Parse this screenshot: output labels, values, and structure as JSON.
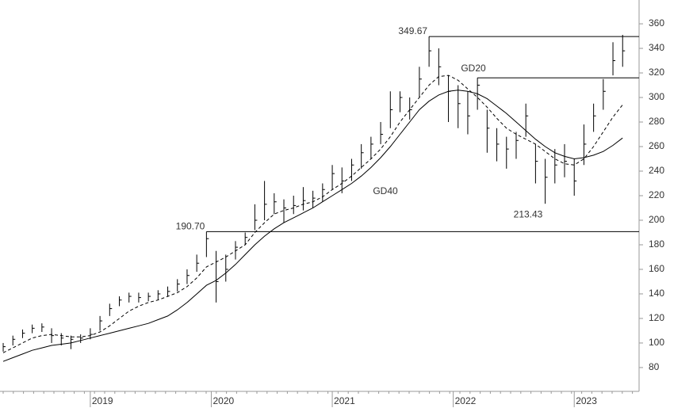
{
  "chart_data": {
    "type": "ohlc",
    "color": "#000000",
    "xlim": [
      -0.33,
      65.7
    ],
    "xticks": [
      {
        "value": 9,
        "label": "2019"
      },
      {
        "value": 21.5,
        "label": "2020"
      },
      {
        "value": 34,
        "label": "2021"
      },
      {
        "value": 46.5,
        "label": "2022"
      },
      {
        "value": 59,
        "label": "2023"
      }
    ],
    "ylim": [
      60.6,
      379.4
    ],
    "yticks": [
      80,
      100,
      120,
      140,
      160,
      180,
      200,
      220,
      240,
      260,
      280,
      300,
      320,
      340,
      360
    ],
    "high": [
      100,
      106,
      111,
      115,
      116,
      112,
      108,
      106,
      107,
      112,
      122,
      132,
      138,
      141,
      141,
      141,
      143,
      146,
      152,
      160,
      172,
      190.7,
      175,
      172,
      183,
      190,
      213,
      232,
      222,
      217,
      220,
      227,
      224,
      230,
      245,
      243,
      250,
      262,
      268,
      280,
      305,
      305,
      300,
      325,
      349.67,
      340,
      318,
      310,
      305,
      316,
      290,
      275,
      268,
      272,
      295,
      262,
      250,
      258,
      262,
      250,
      278,
      295,
      315,
      345,
      351
    ],
    "low": [
      93,
      98,
      104,
      108,
      109,
      100,
      98,
      95,
      100,
      103,
      110,
      122,
      130,
      133,
      133,
      134,
      135,
      138,
      142,
      148,
      158,
      170,
      133,
      150,
      168,
      180,
      192,
      200,
      205,
      198,
      205,
      208,
      210,
      215,
      225,
      222,
      232,
      242,
      250,
      262,
      275,
      288,
      282,
      300,
      325,
      310,
      280,
      275,
      270,
      290,
      255,
      248,
      242,
      250,
      268,
      230,
      213.43,
      230,
      235,
      220,
      245,
      272,
      290,
      318,
      325
    ],
    "close": [
      97,
      103,
      108,
      112,
      113,
      106,
      104,
      103,
      104,
      107,
      118,
      128,
      135,
      138,
      137,
      138,
      140,
      142,
      148,
      155,
      165,
      185,
      150,
      160,
      178,
      186,
      200,
      213,
      215,
      210,
      212,
      216,
      218,
      225,
      238,
      232,
      245,
      255,
      262,
      270,
      290,
      300,
      290,
      315,
      338,
      325,
      305,
      295,
      285,
      310,
      275,
      262,
      258,
      265,
      285,
      248,
      235,
      245,
      248,
      232,
      262,
      285,
      305,
      330,
      338
    ],
    "series": [
      {
        "name": "GD20",
        "color": "#000000",
        "dashed": true,
        "values": [
          92,
          96,
          100,
          104,
          106,
          107,
          106,
          105,
          105,
          106,
          109,
          114,
          120,
          126,
          130,
          133,
          135,
          138,
          141,
          146,
          153,
          162,
          166,
          170,
          175,
          180,
          190,
          198,
          205,
          208,
          210,
          213,
          215,
          219,
          225,
          230,
          236,
          243,
          250,
          258,
          268,
          280,
          290,
          300,
          310,
          317,
          318,
          314,
          307,
          300,
          292,
          283,
          275,
          270,
          266,
          262,
          256,
          250,
          246,
          245,
          250,
          260,
          272,
          284,
          294
        ]
      },
      {
        "name": "GD40",
        "color": "#000000",
        "dashed": false,
        "values": [
          85,
          88,
          91,
          94,
          96,
          98,
          99,
          100,
          102,
          104,
          106,
          108,
          110,
          112,
          114,
          116,
          119,
          122,
          127,
          133,
          140,
          147,
          151,
          157,
          164,
          172,
          180,
          187,
          193,
          198,
          202,
          206,
          210,
          215,
          220,
          225,
          230,
          236,
          243,
          251,
          260,
          270,
          280,
          290,
          297,
          302,
          305,
          306,
          305,
          303,
          299,
          293,
          287,
          280,
          273,
          266,
          260,
          255,
          252,
          250,
          251,
          253,
          256,
          261,
          267
        ]
      }
    ],
    "levels": [
      {
        "value": 349.67,
        "label": "349.67",
        "from": 44
      },
      {
        "value": 316,
        "from": 49
      },
      {
        "value": 190.7,
        "label": "190.70",
        "from": 21
      }
    ],
    "annotations": [
      {
        "value": 213.43,
        "label": "213.43"
      }
    ]
  }
}
